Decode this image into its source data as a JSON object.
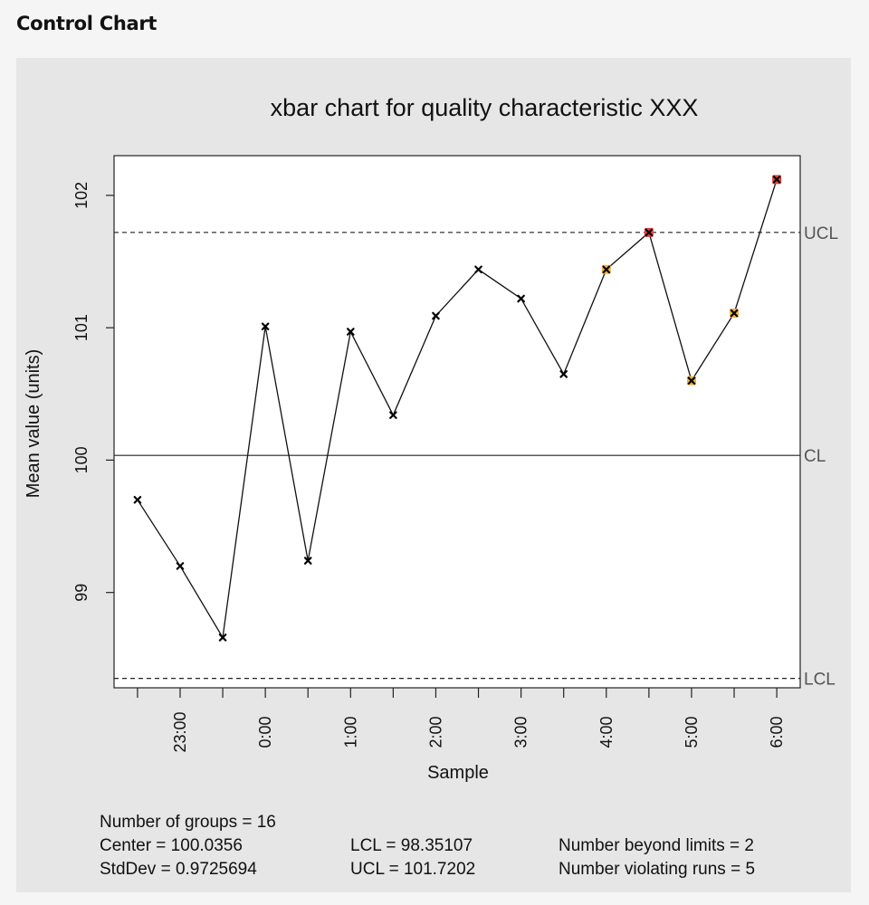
{
  "page": {
    "title": "Control Chart"
  },
  "chart_data": {
    "type": "line",
    "title": "xbar chart for quality characteristic XXX",
    "xlabel": "Sample",
    "ylabel": "Mean value (units)",
    "x_tick_labels": [
      "23:00",
      "0:00",
      "1:00",
      "2:00",
      "3:00",
      "4:00",
      "5:00",
      "6:00"
    ],
    "x_tick_positions": [
      2,
      4,
      6,
      8,
      10,
      12,
      14,
      16
    ],
    "xlim": [
      0.45,
      16.55
    ],
    "ylim": [
      98.28,
      102.3
    ],
    "y_ticks": [
      99,
      100,
      101,
      102
    ],
    "series": [
      {
        "values": [
          99.7,
          99.2,
          98.66,
          101.01,
          99.24,
          100.97,
          100.34,
          101.09,
          101.44,
          101.22,
          100.65,
          101.44,
          101.72,
          100.6,
          101.11,
          102.12
        ],
        "point_status": [
          "normal",
          "normal",
          "normal",
          "normal",
          "normal",
          "normal",
          "normal",
          "normal",
          "normal",
          "normal",
          "normal",
          "violating_run",
          "beyond_limits",
          "violating_run",
          "violating_run",
          "beyond_limits"
        ]
      }
    ],
    "limits": [
      {
        "label": "UCL",
        "value": 101.7202,
        "style": "dashed"
      },
      {
        "label": "CL",
        "value": 100.0356,
        "style": "solid"
      },
      {
        "label": "LCL",
        "value": 98.35107,
        "style": "dashed"
      }
    ],
    "colors": {
      "beyond_limits": "#e8413a",
      "violating_run": "#f5b041",
      "normal": "#000000"
    },
    "grid": false,
    "legend": "none"
  },
  "stats": {
    "groups": "Number of groups = 16",
    "center": "Center = 100.0356",
    "stddev": "StdDev = 0.9725694",
    "lcl": "LCL = 98.35107",
    "ucl": "UCL = 101.7202",
    "beyond": "Number beyond limits = 2",
    "violating": "Number violating runs = 5"
  }
}
